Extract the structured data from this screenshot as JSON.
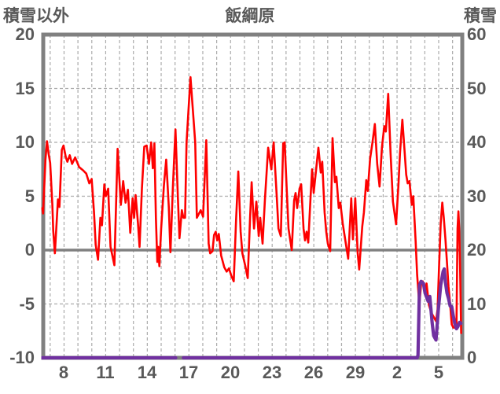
{
  "header": {
    "left_axis_title": "積雪以外",
    "chart_title": "飯綱原",
    "right_axis_title": "積雪"
  },
  "styles": {
    "background": "#ffffff",
    "label_color": "#595959",
    "grid_color": "#ababab",
    "border_color": "#808080",
    "zero_line_color": "#808080",
    "temperature_color": "#fe0000",
    "snow_color": "#7030a0"
  },
  "chart_data": {
    "type": "line",
    "title": "飯綱原",
    "x_axis": {
      "unit": "day-of-month",
      "month_length": 30,
      "domain": [
        6.5,
        36.7
      ],
      "grid_day_start": 7,
      "grid_day_end": 36,
      "tick_days": [
        8,
        11,
        14,
        17,
        20,
        23,
        26,
        29,
        32,
        35
      ],
      "tick_labels": [
        "8",
        "11",
        "14",
        "17",
        "20",
        "23",
        "26",
        "29",
        "2",
        "5"
      ]
    },
    "left_axis": {
      "title": "積雪以外",
      "min": -10,
      "max": 20,
      "ticks": [
        20,
        15,
        10,
        5,
        0,
        -5,
        -10
      ],
      "grid_values": [
        15,
        10,
        5,
        -5
      ],
      "zero_line_value": 0
    },
    "right_axis": {
      "title": "積雪",
      "min": 0,
      "max": 60,
      "ticks": [
        60,
        50,
        40,
        30,
        20,
        10,
        0
      ]
    },
    "series": [
      {
        "name": "積雪以外",
        "axis": "left",
        "color": "#fe0000",
        "stroke_width": 2.6,
        "points": [
          [
            6.43,
            3.9
          ],
          [
            6.49,
            3.4
          ],
          [
            6.66,
            8.4
          ],
          [
            6.77,
            10.1
          ],
          [
            6.88,
            9.0
          ],
          [
            7.0,
            8.1
          ],
          [
            7.16,
            4.2
          ],
          [
            7.22,
            1.8
          ],
          [
            7.34,
            -0.3
          ],
          [
            7.56,
            4.7
          ],
          [
            7.67,
            4.0
          ],
          [
            7.84,
            9.3
          ],
          [
            7.96,
            9.7
          ],
          [
            8.13,
            8.6
          ],
          [
            8.24,
            8.2
          ],
          [
            8.41,
            8.8
          ],
          [
            8.58,
            8.0
          ],
          [
            8.8,
            8.6
          ],
          [
            9.09,
            7.7
          ],
          [
            9.37,
            7.4
          ],
          [
            9.6,
            7.1
          ],
          [
            9.82,
            6.2
          ],
          [
            9.99,
            6.6
          ],
          [
            10.16,
            3.5
          ],
          [
            10.28,
            0.5
          ],
          [
            10.45,
            -0.9
          ],
          [
            10.62,
            3.0
          ],
          [
            10.73,
            2.3
          ],
          [
            10.9,
            6.1
          ],
          [
            11.01,
            5.0
          ],
          [
            11.18,
            5.7
          ],
          [
            11.35,
            0.3
          ],
          [
            11.63,
            -1.4
          ],
          [
            11.86,
            9.4
          ],
          [
            12.09,
            4.2
          ],
          [
            12.26,
            6.4
          ],
          [
            12.43,
            4.4
          ],
          [
            12.6,
            5.6
          ],
          [
            12.77,
            1.6
          ],
          [
            12.94,
            4.8
          ],
          [
            13.05,
            3.0
          ],
          [
            13.16,
            5.1
          ],
          [
            13.33,
            2.5
          ],
          [
            13.44,
            0.3
          ],
          [
            13.61,
            5.7
          ],
          [
            13.78,
            9.6
          ],
          [
            13.95,
            9.7
          ],
          [
            14.12,
            8.0
          ],
          [
            14.28,
            10.0
          ],
          [
            14.4,
            7.6
          ],
          [
            14.51,
            9.9
          ],
          [
            14.62,
            3.0
          ],
          [
            14.72,
            -1.1
          ],
          [
            14.79,
            0.3
          ],
          [
            14.87,
            -1.5
          ],
          [
            15.0,
            2.0
          ],
          [
            15.2,
            6.0
          ],
          [
            15.36,
            8.4
          ],
          [
            15.55,
            4.0
          ],
          [
            15.67,
            -0.2
          ],
          [
            15.85,
            6.0
          ],
          [
            16.03,
            11.2
          ],
          [
            16.2,
            5.0
          ],
          [
            16.32,
            1.1
          ],
          [
            16.49,
            3.7
          ],
          [
            16.6,
            3.0
          ],
          [
            16.72,
            3.0
          ],
          [
            16.83,
            10.0
          ],
          [
            17.11,
            16.05
          ],
          [
            17.45,
            10.0
          ],
          [
            17.57,
            3.0
          ],
          [
            17.85,
            3.7
          ],
          [
            18.02,
            3.1
          ],
          [
            18.25,
            10.2
          ],
          [
            18.42,
            0.6
          ],
          [
            18.53,
            -0.3
          ],
          [
            18.7,
            -0.1
          ],
          [
            18.81,
            1.4
          ],
          [
            18.93,
            1.7
          ],
          [
            19.04,
            0.9
          ],
          [
            19.15,
            1.5
          ],
          [
            19.32,
            -0.5
          ],
          [
            19.55,
            -1.6
          ],
          [
            19.72,
            -2.0
          ],
          [
            19.89,
            -1.7
          ],
          [
            20.06,
            -2.4
          ],
          [
            20.23,
            -2.9
          ],
          [
            20.4,
            2.8
          ],
          [
            20.56,
            7.3
          ],
          [
            20.73,
            1.7
          ],
          [
            20.85,
            -0.3
          ],
          [
            21.07,
            -1.5
          ],
          [
            21.24,
            -2.6
          ],
          [
            21.41,
            3.0
          ],
          [
            21.52,
            6.3
          ],
          [
            21.69,
            2.0
          ],
          [
            21.86,
            4.5
          ],
          [
            22.03,
            1.3
          ],
          [
            22.14,
            3.0
          ],
          [
            22.31,
            0.6
          ],
          [
            22.48,
            4.7
          ],
          [
            22.71,
            9.5
          ],
          [
            22.94,
            7.5
          ],
          [
            23.11,
            10.0
          ],
          [
            23.33,
            5.0
          ],
          [
            23.45,
            2.0
          ],
          [
            23.62,
            1.3
          ],
          [
            23.79,
            9.9
          ],
          [
            23.9,
            10.0
          ],
          [
            24.07,
            5.0
          ],
          [
            24.18,
            2.0
          ],
          [
            24.41,
            0.0
          ],
          [
            24.58,
            4.6
          ],
          [
            24.69,
            5.3
          ],
          [
            24.8,
            3.9
          ],
          [
            24.97,
            5.7
          ],
          [
            25.09,
            6.1
          ],
          [
            25.26,
            2.0
          ],
          [
            25.37,
            0.9
          ],
          [
            25.48,
            1.7
          ],
          [
            25.6,
            0.7
          ],
          [
            25.77,
            5.0
          ],
          [
            25.88,
            7.5
          ],
          [
            25.99,
            5.3
          ],
          [
            26.33,
            9.5
          ],
          [
            26.5,
            7.2
          ],
          [
            26.61,
            8.2
          ],
          [
            26.78,
            3.5
          ],
          [
            26.9,
            1.7
          ],
          [
            27.01,
            0.6
          ],
          [
            27.18,
            -0.1
          ],
          [
            27.35,
            10.4
          ],
          [
            27.52,
            6.3
          ],
          [
            27.63,
            6.8
          ],
          [
            27.8,
            3.9
          ],
          [
            27.91,
            4.4
          ],
          [
            28.08,
            2.5
          ],
          [
            28.31,
            0.6
          ],
          [
            28.48,
            -0.8
          ],
          [
            28.7,
            4.8
          ],
          [
            28.82,
            1.0
          ],
          [
            28.99,
            4.8
          ],
          [
            29.16,
            -0.2
          ],
          [
            29.27,
            -1.8
          ],
          [
            29.49,
            2.2
          ],
          [
            29.61,
            3.5
          ],
          [
            29.78,
            6.5
          ],
          [
            29.89,
            5.5
          ],
          [
            30.06,
            8.5
          ],
          [
            30.23,
            10.0
          ],
          [
            30.4,
            11.7
          ],
          [
            30.57,
            8.0
          ],
          [
            30.74,
            5.9
          ],
          [
            30.91,
            9.5
          ],
          [
            31.08,
            11.5
          ],
          [
            31.19,
            11.0
          ],
          [
            31.36,
            14.5
          ],
          [
            31.53,
            9.0
          ],
          [
            31.7,
            4.5
          ],
          [
            31.93,
            2.4
          ],
          [
            32.1,
            6.0
          ],
          [
            32.21,
            9.0
          ],
          [
            32.38,
            12.1
          ],
          [
            32.55,
            9.0
          ],
          [
            32.66,
            7.0
          ],
          [
            32.77,
            6.2
          ],
          [
            32.89,
            6.4
          ],
          [
            33.06,
            4.2
          ],
          [
            33.17,
            5.0
          ],
          [
            33.34,
            0.8
          ],
          [
            33.45,
            -2.3
          ],
          [
            33.56,
            -4.3
          ],
          [
            33.62,
            -4.9
          ],
          [
            33.73,
            -3.2
          ],
          [
            33.85,
            -2.9
          ],
          [
            34.02,
            -3.8
          ],
          [
            34.13,
            -3.1
          ],
          [
            34.3,
            -5.1
          ],
          [
            34.47,
            -5.8
          ],
          [
            34.64,
            -6.2
          ],
          [
            34.81,
            -6.6
          ],
          [
            34.92,
            -5.5
          ],
          [
            35.03,
            -1.5
          ],
          [
            35.15,
            2.5
          ],
          [
            35.26,
            4.4
          ],
          [
            35.37,
            3.0
          ],
          [
            35.49,
            1.0
          ],
          [
            35.6,
            -1.2
          ],
          [
            35.71,
            -3.4
          ],
          [
            35.83,
            -5.0
          ],
          [
            35.89,
            -6.1
          ],
          [
            35.94,
            -6.9
          ],
          [
            36.06,
            -7.2
          ],
          [
            36.28,
            -7.2
          ],
          [
            36.36,
            2.0
          ],
          [
            36.42,
            3.6
          ],
          [
            36.48,
            2.0
          ],
          [
            36.54,
            -1.4
          ],
          [
            36.62,
            -7.7
          ]
        ]
      },
      {
        "name": "積雪",
        "axis": "right",
        "color": "#7030a0",
        "stroke_width": 4.2,
        "points": [
          [
            6.43,
            0
          ],
          [
            16.05,
            0
          ],
          [
            null,
            null
          ],
          [
            16.6,
            0
          ],
          [
            33.45,
            0
          ],
          [
            33.51,
            0.5
          ],
          [
            33.62,
            13.5
          ],
          [
            33.73,
            14.2
          ],
          [
            33.9,
            13.8
          ],
          [
            34.02,
            12.0
          ],
          [
            34.24,
            10.5
          ],
          [
            34.36,
            11.4
          ],
          [
            34.53,
            6.5
          ],
          [
            34.64,
            4.1
          ],
          [
            34.81,
            3.3
          ],
          [
            34.98,
            9.0
          ],
          [
            35.15,
            13.5
          ],
          [
            35.32,
            16.0
          ],
          [
            35.4,
            16.5
          ],
          [
            35.49,
            14.0
          ],
          [
            35.6,
            12.0
          ],
          [
            35.71,
            11.0
          ],
          [
            35.83,
            9.6
          ],
          [
            35.94,
            9.5
          ],
          [
            36.06,
            7.7
          ],
          [
            36.17,
            6.3
          ],
          [
            36.28,
            5.4
          ],
          [
            36.39,
            5.8
          ],
          [
            36.51,
            6.6
          ],
          [
            36.6,
            6.4
          ]
        ]
      }
    ]
  }
}
